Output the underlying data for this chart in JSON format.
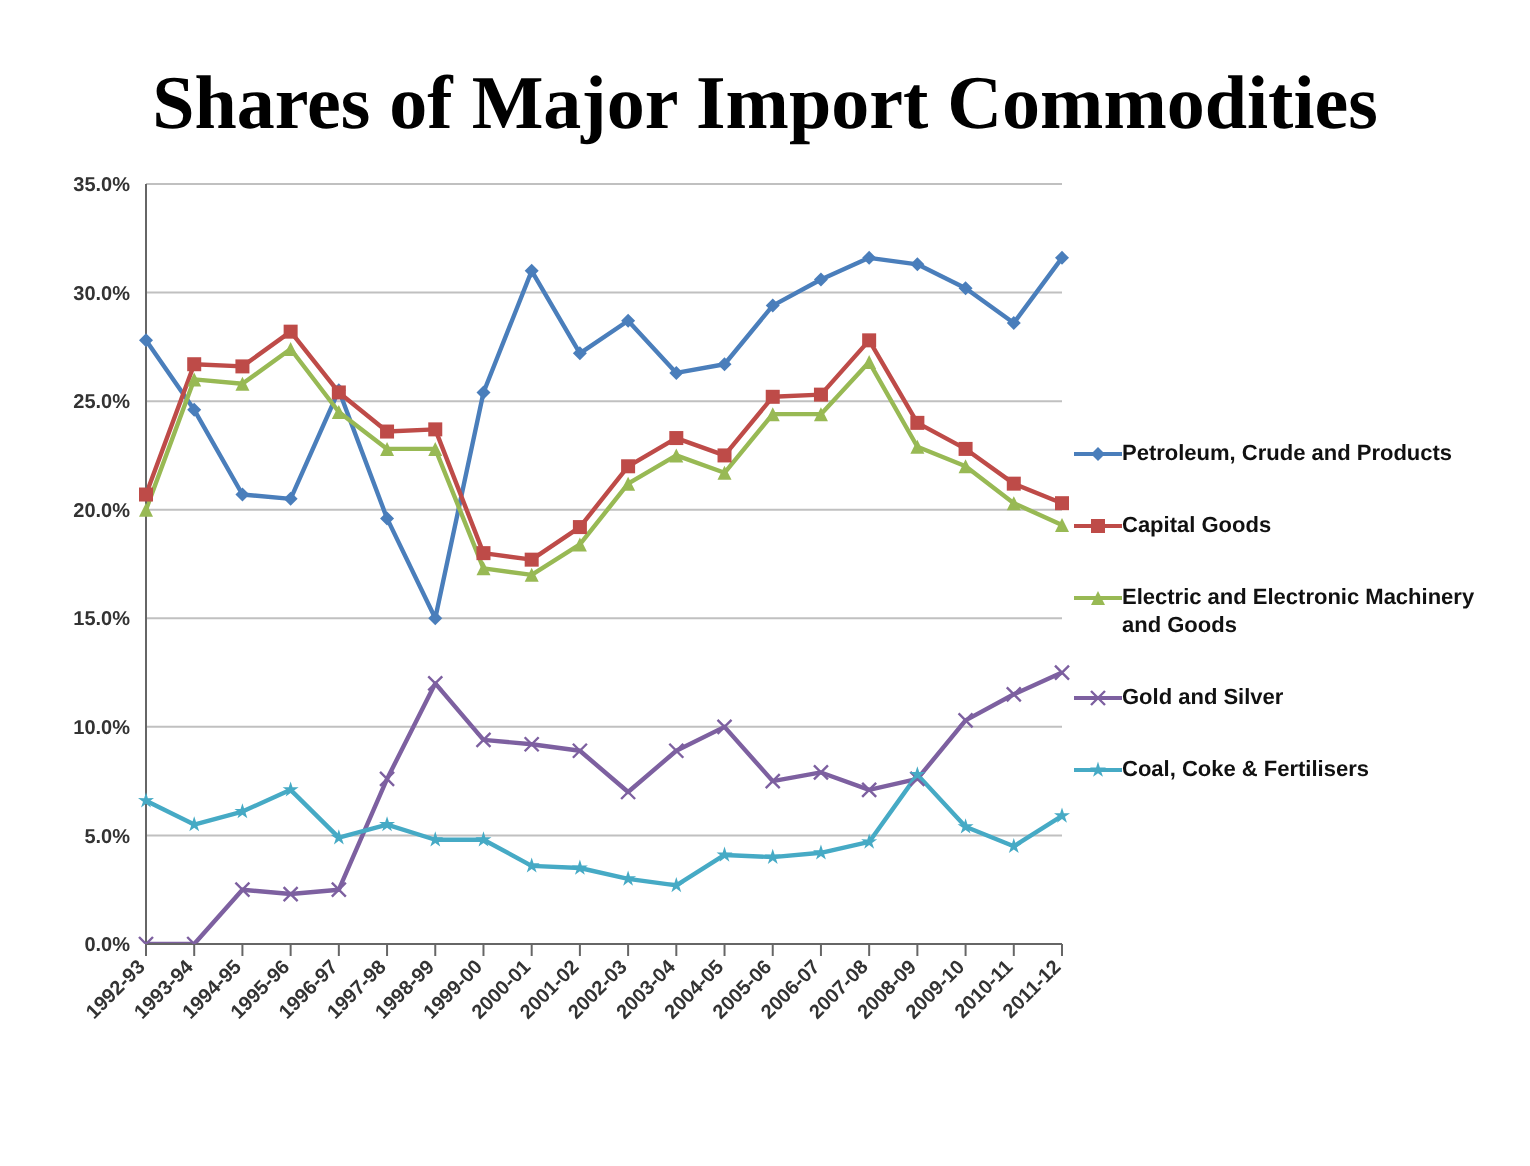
{
  "chart_data": {
    "type": "line",
    "title": "Shares of Major Import Commodities",
    "categories": [
      "1992-93",
      "1993-94",
      "1994-95",
      "1995-96",
      "1996-97",
      "1997-98",
      "1998-99",
      "1999-00",
      "2000-01",
      "2001-02",
      "2002-03",
      "2003-04",
      "2004-05",
      "2005-06",
      "2006-07",
      "2007-08",
      "2008-09",
      "2009-10",
      "2010-11",
      "2011-12"
    ],
    "series": [
      {
        "name": "Petroleum, Crude and Products",
        "color": "#4a7ebb",
        "marker": "diamond",
        "values": [
          27.8,
          24.6,
          20.7,
          20.5,
          25.5,
          19.6,
          15.0,
          25.4,
          31.0,
          27.2,
          28.7,
          26.3,
          26.7,
          29.4,
          30.6,
          31.6,
          31.3,
          30.2,
          28.6,
          31.6
        ]
      },
      {
        "name": "Capital Goods",
        "color": "#be4b48",
        "marker": "square",
        "values": [
          20.7,
          26.7,
          26.6,
          28.2,
          25.4,
          23.6,
          23.7,
          18.0,
          17.7,
          19.2,
          22.0,
          23.3,
          22.5,
          25.2,
          25.3,
          27.8,
          24.0,
          22.8,
          21.2,
          20.3
        ]
      },
      {
        "name": "Electric and Electronic Machinery and Goods",
        "color": "#98b954",
        "marker": "triangle",
        "values": [
          20.0,
          26.0,
          25.8,
          27.4,
          24.5,
          22.8,
          22.8,
          17.3,
          17.0,
          18.4,
          21.2,
          22.5,
          21.7,
          24.4,
          24.4,
          26.8,
          22.9,
          22.0,
          20.3,
          19.3
        ]
      },
      {
        "name": "Gold and Silver",
        "color": "#7d60a0",
        "marker": "cross",
        "values": [
          0,
          0,
          2.5,
          2.3,
          2.5,
          7.6,
          12.0,
          9.4,
          9.2,
          8.9,
          7.0,
          8.9,
          10.0,
          7.5,
          7.9,
          7.1,
          7.6,
          10.3,
          11.5,
          12.5
        ]
      },
      {
        "name": "Coal, Coke & Fertilisers",
        "color": "#46aac5",
        "marker": "star",
        "values": [
          6.6,
          5.5,
          6.1,
          7.1,
          4.9,
          5.5,
          4.8,
          4.8,
          3.6,
          3.5,
          3.0,
          2.7,
          4.1,
          4.0,
          4.2,
          4.7,
          7.8,
          5.4,
          4.5,
          5.9
        ]
      }
    ],
    "ylim": [
      0,
      35
    ],
    "yticks": [
      {
        "value": 0,
        "label": "0.0%"
      },
      {
        "value": 5,
        "label": "5.0%"
      },
      {
        "value": 10,
        "label": "10.0%"
      },
      {
        "value": 15,
        "label": "15.0%"
      },
      {
        "value": 20,
        "label": "20.0%"
      },
      {
        "value": 25,
        "label": "25.0%"
      },
      {
        "value": 30,
        "label": "30.0%"
      },
      {
        "value": 35,
        "label": "35.0%"
      }
    ],
    "grid": "y",
    "legend": "right",
    "line_style": "solid"
  }
}
